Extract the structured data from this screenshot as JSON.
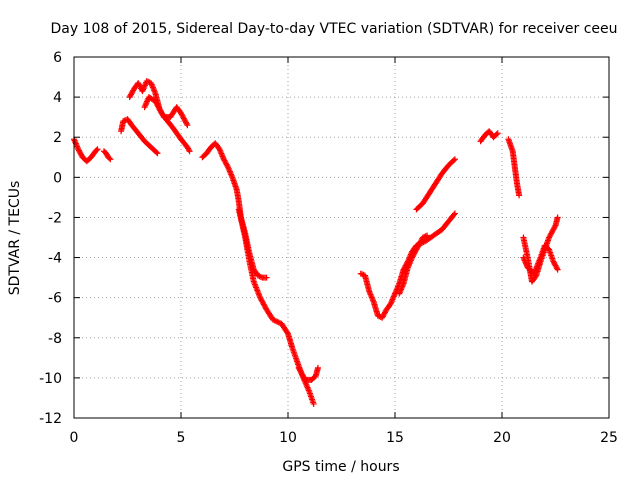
{
  "chart_data": {
    "type": "scatter",
    "title": "Day 108 of 2015, Sidereal Day-to-day VTEC variation (SDTVAR) for receiver ceeu",
    "xlabel": "GPS time / hours",
    "ylabel": "SDTVAR / TECUs",
    "xlim": [
      0,
      25
    ],
    "ylim": [
      -12,
      6
    ],
    "xticks": [
      0,
      5,
      10,
      15,
      20,
      25
    ],
    "yticks": [
      -12,
      -10,
      -8,
      -6,
      -4,
      -2,
      0,
      2,
      4,
      6
    ],
    "grid": true,
    "marker": "+",
    "color": "#ff0000",
    "series": [
      {
        "segments": [
          [
            [
              0.0,
              1.9
            ],
            [
              0.2,
              1.4
            ],
            [
              0.4,
              1.0
            ],
            [
              0.6,
              0.8
            ],
            [
              0.8,
              1.0
            ],
            [
              1.0,
              1.3
            ],
            [
              1.1,
              1.4
            ]
          ],
          [
            [
              1.4,
              1.3
            ],
            [
              1.5,
              1.2
            ],
            [
              1.6,
              1.0
            ],
            [
              1.7,
              0.9
            ]
          ],
          [
            [
              2.2,
              2.3
            ],
            [
              2.3,
              2.8
            ],
            [
              2.5,
              2.9
            ],
            [
              2.7,
              2.6
            ],
            [
              3.0,
              2.2
            ],
            [
              3.3,
              1.8
            ],
            [
              3.6,
              1.5
            ],
            [
              3.9,
              1.2
            ]
          ],
          [
            [
              2.6,
              4.0
            ],
            [
              2.8,
              4.4
            ],
            [
              3.0,
              4.7
            ],
            [
              3.2,
              4.3
            ],
            [
              3.4,
              4.8
            ],
            [
              3.6,
              4.7
            ],
            [
              3.8,
              4.2
            ],
            [
              4.0,
              3.4
            ],
            [
              4.2,
              3.0
            ],
            [
              4.5,
              3.0
            ],
            [
              4.8,
              3.5
            ],
            [
              5.0,
              3.2
            ],
            [
              5.2,
              2.8
            ],
            [
              5.3,
              2.6
            ]
          ],
          [
            [
              3.3,
              3.5
            ],
            [
              3.5,
              4.0
            ],
            [
              3.8,
              3.8
            ],
            [
              4.1,
              3.2
            ],
            [
              4.3,
              2.9
            ],
            [
              4.6,
              2.5
            ],
            [
              5.0,
              1.9
            ],
            [
              5.3,
              1.5
            ],
            [
              5.4,
              1.3
            ]
          ],
          [
            [
              6.0,
              1.0
            ],
            [
              6.2,
              1.2
            ],
            [
              6.4,
              1.5
            ],
            [
              6.6,
              1.7
            ],
            [
              6.8,
              1.4
            ],
            [
              7.0,
              0.9
            ],
            [
              7.2,
              0.5
            ],
            [
              7.4,
              0.0
            ],
            [
              7.6,
              -0.6
            ],
            [
              7.7,
              -1.2
            ],
            [
              7.8,
              -2.0
            ],
            [
              8.0,
              -2.8
            ],
            [
              8.2,
              -3.8
            ],
            [
              8.4,
              -4.6
            ],
            [
              8.6,
              -4.9
            ],
            [
              8.8,
              -5.0
            ],
            [
              9.0,
              -5.0
            ]
          ],
          [
            [
              7.7,
              -1.6
            ],
            [
              8.0,
              -3.0
            ],
            [
              8.2,
              -4.2
            ],
            [
              8.4,
              -5.2
            ],
            [
              8.7,
              -6.0
            ],
            [
              9.0,
              -6.6
            ],
            [
              9.3,
              -7.1
            ],
            [
              9.7,
              -7.3
            ],
            [
              10.0,
              -7.8
            ],
            [
              10.2,
              -8.5
            ],
            [
              10.4,
              -9.1
            ],
            [
              10.6,
              -9.7
            ],
            [
              10.8,
              -10.2
            ],
            [
              11.0,
              -10.7
            ],
            [
              11.2,
              -11.3
            ]
          ],
          [
            [
              10.5,
              -9.5
            ],
            [
              10.8,
              -10.1
            ],
            [
              11.1,
              -10.1
            ],
            [
              11.3,
              -9.9
            ],
            [
              11.4,
              -9.5
            ]
          ],
          [
            [
              13.4,
              -4.8
            ],
            [
              13.6,
              -4.9
            ],
            [
              13.8,
              -5.7
            ],
            [
              14.0,
              -6.2
            ],
            [
              14.2,
              -6.9
            ],
            [
              14.4,
              -7.0
            ],
            [
              14.6,
              -6.6
            ],
            [
              14.8,
              -6.3
            ],
            [
              15.0,
              -5.8
            ],
            [
              15.2,
              -5.3
            ],
            [
              15.4,
              -4.6
            ],
            [
              15.6,
              -4.2
            ],
            [
              15.8,
              -3.7
            ],
            [
              16.0,
              -3.4
            ],
            [
              16.4,
              -3.2
            ],
            [
              16.8,
              -2.9
            ],
            [
              17.2,
              -2.6
            ],
            [
              17.5,
              -2.2
            ],
            [
              17.8,
              -1.8
            ]
          ],
          [
            [
              15.2,
              -5.8
            ],
            [
              15.4,
              -5.3
            ],
            [
              15.6,
              -4.5
            ],
            [
              15.8,
              -4.0
            ],
            [
              16.0,
              -3.6
            ],
            [
              16.3,
              -3.0
            ],
            [
              16.5,
              -2.9
            ]
          ],
          [
            [
              16.0,
              -1.6
            ],
            [
              16.3,
              -1.3
            ],
            [
              16.6,
              -0.8
            ],
            [
              16.9,
              -0.3
            ],
            [
              17.2,
              0.2
            ],
            [
              17.5,
              0.6
            ],
            [
              17.8,
              0.9
            ]
          ],
          [
            [
              19.0,
              1.8
            ],
            [
              19.2,
              2.1
            ],
            [
              19.4,
              2.3
            ],
            [
              19.6,
              2.0
            ],
            [
              19.8,
              2.2
            ]
          ],
          [
            [
              20.3,
              1.9
            ],
            [
              20.5,
              1.3
            ],
            [
              20.6,
              0.5
            ],
            [
              20.7,
              -0.3
            ],
            [
              20.8,
              -0.9
            ]
          ],
          [
            [
              21.0,
              -3.0
            ],
            [
              21.2,
              -4.0
            ],
            [
              21.4,
              -5.2
            ],
            [
              21.6,
              -4.9
            ],
            [
              21.8,
              -4.2
            ],
            [
              22.0,
              -3.6
            ],
            [
              22.2,
              -3.0
            ],
            [
              22.4,
              -2.6
            ],
            [
              22.5,
              -2.4
            ],
            [
              22.6,
              -2.0
            ]
          ],
          [
            [
              21.0,
              -4.0
            ],
            [
              21.2,
              -4.5
            ],
            [
              21.5,
              -4.8
            ],
            [
              21.8,
              -4.0
            ],
            [
              22.0,
              -3.4
            ],
            [
              22.2,
              -3.6
            ],
            [
              22.4,
              -4.2
            ],
            [
              22.6,
              -4.6
            ]
          ]
        ]
      }
    ]
  }
}
